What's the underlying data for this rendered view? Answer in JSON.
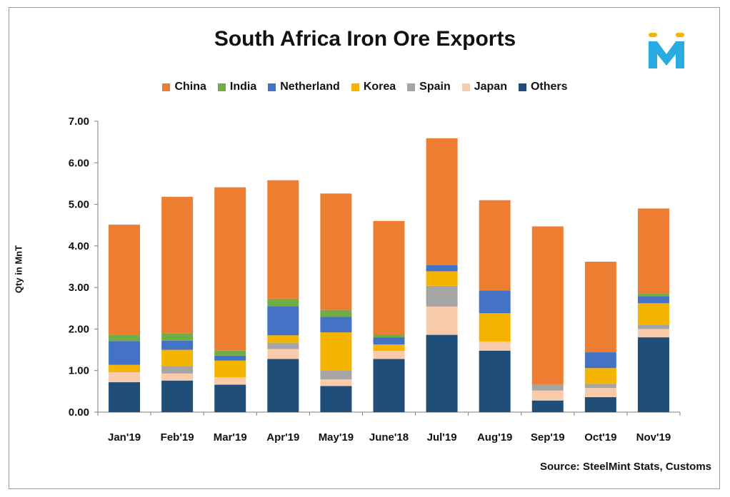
{
  "chart_data": {
    "type": "bar",
    "stacked": true,
    "title": "South Africa Iron Ore Exports",
    "xlabel": "",
    "ylabel": "Qty in MnT",
    "ylim": [
      0,
      7
    ],
    "yticks": [
      "0.00",
      "1.00",
      "2.00",
      "3.00",
      "4.00",
      "5.00",
      "6.00",
      "7.00"
    ],
    "legend_position": "top",
    "categories": [
      "Jan'19",
      "Feb'19",
      "Mar'19",
      "Apr'19",
      "May'19",
      "June'18",
      "Jul'19",
      "Aug'19",
      "Sep'19",
      "Oct'19",
      "Nov'19"
    ],
    "series": [
      {
        "name": "Others",
        "color": "#1f4e79",
        "values": [
          0.72,
          0.76,
          0.66,
          1.28,
          0.63,
          1.28,
          1.86,
          1.48,
          0.28,
          0.36,
          1.8
        ]
      },
      {
        "name": "Japan",
        "color": "#f8cbad",
        "values": [
          0.24,
          0.17,
          0.18,
          0.24,
          0.16,
          0.19,
          0.68,
          0.22,
          0.24,
          0.22,
          0.2
        ]
      },
      {
        "name": "Spain",
        "color": "#a5a5a5",
        "values": [
          0.0,
          0.18,
          0.0,
          0.15,
          0.22,
          0.0,
          0.5,
          0.0,
          0.15,
          0.1,
          0.1
        ]
      },
      {
        "name": "Korea",
        "color": "#f4b400",
        "values": [
          0.18,
          0.39,
          0.4,
          0.18,
          0.91,
          0.16,
          0.35,
          0.68,
          0.0,
          0.38,
          0.52
        ]
      },
      {
        "name": "Netherland",
        "color": "#4472c4",
        "values": [
          0.57,
          0.22,
          0.12,
          0.7,
          0.37,
          0.17,
          0.15,
          0.55,
          0.0,
          0.38,
          0.17
        ]
      },
      {
        "name": "India",
        "color": "#70ad47",
        "values": [
          0.15,
          0.18,
          0.12,
          0.18,
          0.17,
          0.07,
          0.0,
          0.0,
          0.0,
          0.0,
          0.07
        ]
      },
      {
        "name": "China",
        "color": "#ed7d31",
        "values": [
          2.65,
          3.28,
          3.93,
          2.85,
          2.8,
          2.73,
          3.05,
          2.17,
          3.8,
          2.18,
          2.04
        ]
      }
    ],
    "legend_order": [
      "China",
      "India",
      "Netherland",
      "Korea",
      "Spain",
      "Japan",
      "Others"
    ],
    "grid": false
  },
  "source_text": "Source: SteelMint Stats, Customs",
  "logo": {
    "letter": "M",
    "color": "#29abe2",
    "accent": "#f4b400",
    "icon": "steelmint-logo-icon"
  }
}
